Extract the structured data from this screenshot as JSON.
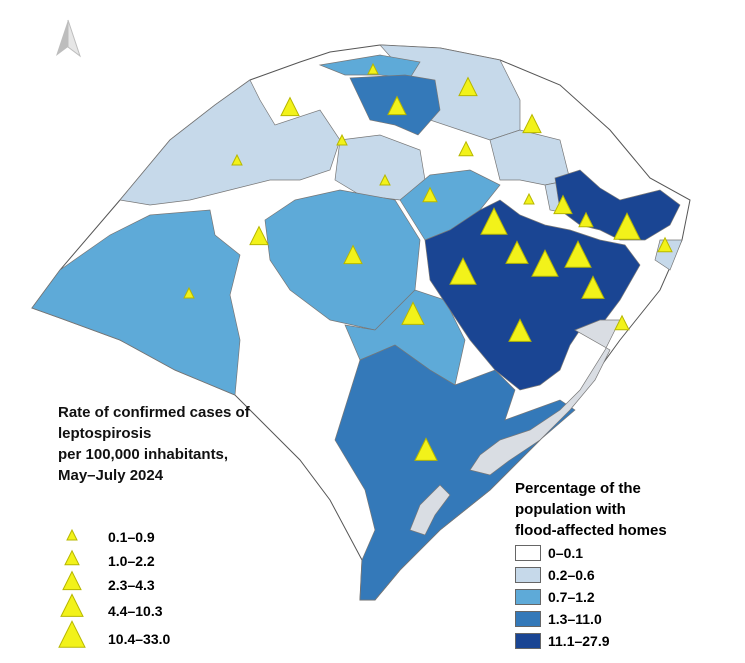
{
  "map": {
    "north_arrow_icon": "north-arrow-icon",
    "colors": {
      "class_0": "#ffffff",
      "class_1": "#c6d9ea",
      "class_2": "#5eaad8",
      "class_3": "#3479b9",
      "class_4": "#1a4593",
      "lagoon": "#d9dde3",
      "triangle": "#f2f21a",
      "triangle_stroke": "#b7b700"
    }
  },
  "triangle_legend": {
    "title_lines": [
      "Rate of confirmed cases of",
      "leptospirosis",
      "per 100,000 inhabitants,",
      "May–July 2024"
    ],
    "items": [
      {
        "label": "0.1–0.9"
      },
      {
        "label": "1.0–2.2"
      },
      {
        "label": "2.3–4.3"
      },
      {
        "label": "4.4–10.3"
      },
      {
        "label": "10.4–33.0"
      }
    ]
  },
  "fill_legend": {
    "title_lines": [
      "Percentage of the",
      "population with",
      "flood-affected homes"
    ],
    "items": [
      {
        "label": "0–0.1",
        "color": "#ffffff"
      },
      {
        "label": "0.2–0.6",
        "color": "#c6d9ea"
      },
      {
        "label": "0.7–1.2",
        "color": "#5eaad8"
      },
      {
        "label": "1.3–11.0",
        "color": "#3479b9"
      },
      {
        "label": "11.1–27.9",
        "color": "#1a4593"
      }
    ]
  }
}
